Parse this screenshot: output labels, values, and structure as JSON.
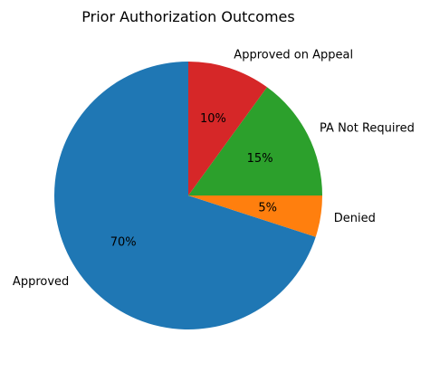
{
  "chart_data": {
    "type": "pie",
    "title": "Prior Authorization Outcomes",
    "start_angle_deg": 90,
    "direction": "counterclockwise",
    "slices": [
      {
        "label": "Approved",
        "value": 70,
        "pct_label": "70%",
        "color": "#1f77b4"
      },
      {
        "label": "Denied",
        "value": 5,
        "pct_label": "5%",
        "color": "#ff7f0e"
      },
      {
        "label": "PA Not Required",
        "value": 15,
        "pct_label": "15%",
        "color": "#2ca02c"
      },
      {
        "label": "Approved on Appeal",
        "value": 10,
        "pct_label": "10%",
        "color": "#d62728"
      }
    ]
  }
}
